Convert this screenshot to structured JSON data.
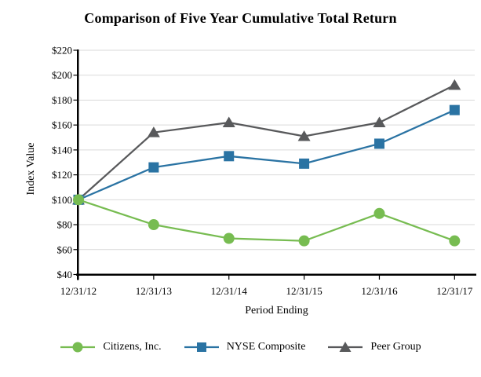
{
  "chart_data": {
    "type": "line",
    "title": "Comparison of Five Year Cumulative Total Return",
    "x": [
      "12/31/12",
      "12/31/13",
      "12/31/14",
      "12/31/15",
      "12/31/16",
      "12/31/17"
    ],
    "series": [
      {
        "name": "Citizens, Inc.",
        "marker": "circle",
        "color": "#77BC51",
        "values": [
          100,
          80,
          69,
          67,
          89,
          67
        ]
      },
      {
        "name": "NYSE Composite",
        "marker": "square",
        "color": "#2A73A3",
        "values": [
          100,
          126,
          135,
          129,
          145,
          172
        ]
      },
      {
        "name": "Peer Group",
        "marker": "triangle",
        "color": "#58595B",
        "values": [
          100,
          154,
          162,
          151,
          162,
          192
        ]
      }
    ],
    "xlabel": "Period Ending",
    "ylabel": "Index Value",
    "ylim": [
      40,
      220
    ],
    "ytick_step": 20,
    "ytick_prefix": "$",
    "grid": true,
    "legend_position": "bottom",
    "colors": {
      "grid": "#D9D9D9",
      "axis": "#000000",
      "text": "#000000",
      "background": "#FFFFFF"
    }
  }
}
